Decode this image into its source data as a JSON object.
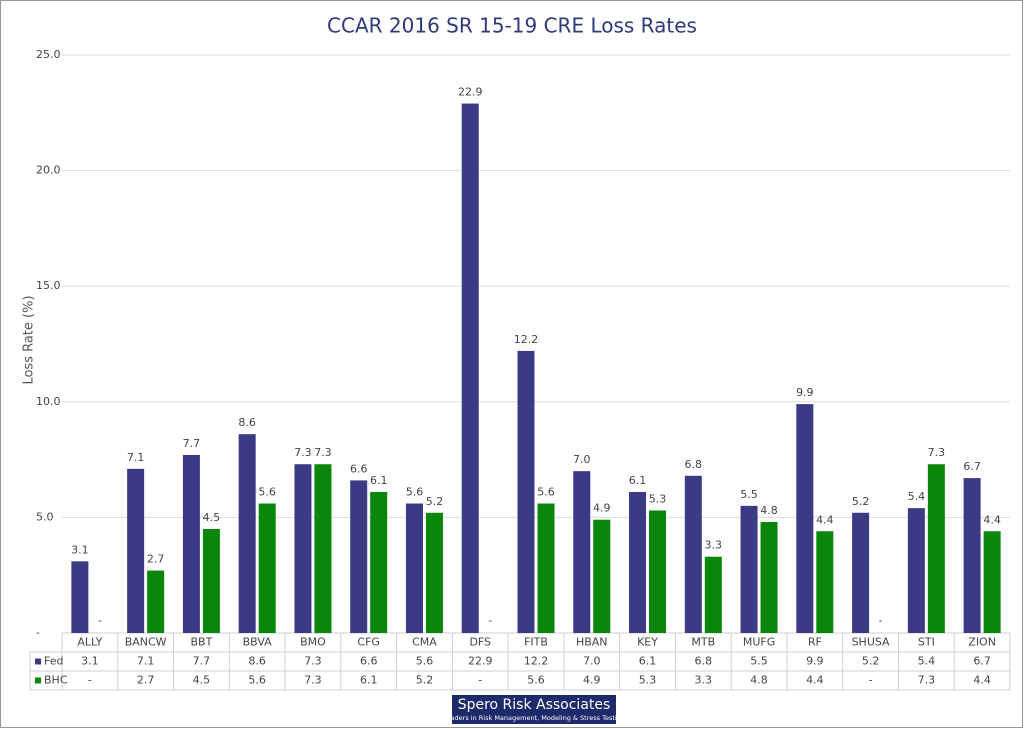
{
  "chart_data": {
    "type": "bar",
    "title": "CCAR 2016 SR 15-19 CRE Loss Rates",
    "y_label": "Loss Rate (%)",
    "categories": [
      "ALLY",
      "BANCW",
      "BBT",
      "BBVA",
      "BMO",
      "CFG",
      "CMA",
      "DFS",
      "FITB",
      "HBAN",
      "KEY",
      "MTB",
      "MUFG",
      "RF",
      "SHUSA",
      "STI",
      "ZION"
    ],
    "series": [
      {
        "name": "Fed",
        "color": "#3b3b85",
        "values": [
          3.1,
          7.1,
          7.7,
          8.6,
          7.3,
          6.6,
          5.6,
          22.9,
          12.2,
          7.0,
          6.1,
          6.8,
          5.5,
          9.9,
          5.2,
          5.4,
          6.7
        ],
        "value_labels": [
          "3.1",
          "7.1",
          "7.7",
          "8.6",
          "7.3",
          "6.6",
          "5.6",
          "22.9",
          "12.2",
          "7.0",
          "6.1",
          "6.8",
          "5.5",
          "9.9",
          "5.2",
          "5.4",
          "6.7"
        ]
      },
      {
        "name": "BHC",
        "color": "#0a870a",
        "values": [
          null,
          2.7,
          4.5,
          5.6,
          7.3,
          6.1,
          5.2,
          null,
          5.6,
          4.9,
          5.3,
          3.3,
          4.8,
          4.4,
          null,
          7.3,
          4.4
        ],
        "value_labels": [
          "-",
          "2.7",
          "4.5",
          "5.6",
          "7.3",
          "6.1",
          "5.2",
          "-",
          "5.6",
          "4.9",
          "5.3",
          "3.3",
          "4.8",
          "4.4",
          "-",
          "7.3",
          "4.4"
        ]
      }
    ],
    "ylim": [
      0,
      25
    ],
    "yticks": [
      {
        "value": 0,
        "label": "-"
      },
      {
        "value": 5,
        "label": "5.0"
      },
      {
        "value": 10,
        "label": "10.0"
      },
      {
        "value": 15,
        "label": "15.0"
      },
      {
        "value": 20,
        "label": "20.0"
      },
      {
        "value": 25,
        "label": "25.0"
      }
    ],
    "grid": true
  },
  "logo": {
    "name": "Spero Risk Associates",
    "tagline": "Leaders in Risk Management, Modeling & Stress Testing"
  }
}
